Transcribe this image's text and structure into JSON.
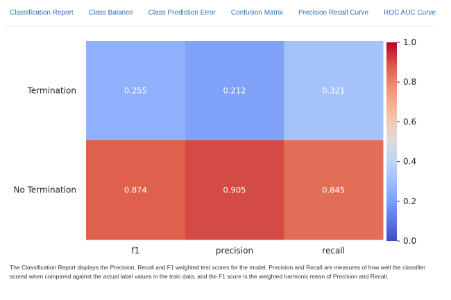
{
  "tabs": [
    {
      "label": "Classification Report"
    },
    {
      "label": "Class Balance"
    },
    {
      "label": "Class Prediction Error"
    },
    {
      "label": "Confusion Matrix"
    },
    {
      "label": "Precision Recall Curve"
    },
    {
      "label": "ROC AUC Curve"
    }
  ],
  "caption": "The Classification Report displays the Precision, Recall and F1 weighted test scores for the model. Precision and Recall are measures of how well the classifier scored when compared against the actual label values in the train data, and the F1 score is the weighted harmonic mean of Precision and Recall.",
  "chart_data": {
    "type": "heatmap",
    "title": "",
    "xlabel": "",
    "ylabel": "",
    "x_categories": [
      "f1",
      "precision",
      "recall"
    ],
    "y_categories": [
      "Termination",
      "No Termination"
    ],
    "values": [
      [
        0.255,
        0.212,
        0.321
      ],
      [
        0.874,
        0.905,
        0.845
      ]
    ],
    "value_labels": [
      [
        "0.255",
        "0.212",
        "0.321"
      ],
      [
        "0.874",
        "0.905",
        "0.845"
      ]
    ],
    "colorbar": {
      "range": [
        0.0,
        1.0
      ],
      "ticks": [
        "0.0",
        "0.2",
        "0.4",
        "0.6",
        "0.8",
        "1.0"
      ],
      "colormap": "coolwarm",
      "low_color": "#3b4cc0",
      "high_color": "#b40426"
    }
  }
}
